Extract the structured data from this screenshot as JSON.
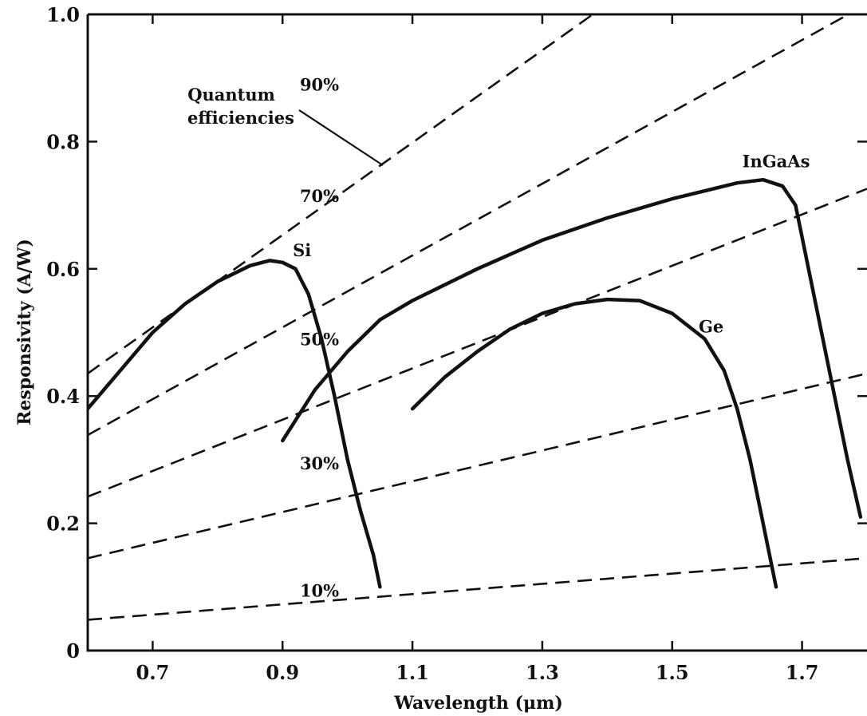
{
  "chart_data": {
    "type": "line",
    "xlabel": "Wavelength (μm)",
    "ylabel": "Responsivity (A/W)",
    "xlim": [
      0.6,
      1.8
    ],
    "ylim": [
      0,
      1.0
    ],
    "x_ticks": [
      {
        "value": 0.7,
        "label": "0.7"
      },
      {
        "value": 0.9,
        "label": "0.9"
      },
      {
        "value": 1.1,
        "label": "1.1"
      },
      {
        "value": 1.3,
        "label": "1.3"
      },
      {
        "value": 1.5,
        "label": "1.5"
      },
      {
        "value": 1.7,
        "label": "1.7"
      }
    ],
    "y_ticks": [
      {
        "value": 0,
        "label": "0"
      },
      {
        "value": 0.2,
        "label": "0.2"
      },
      {
        "value": 0.4,
        "label": "0.4"
      },
      {
        "value": 0.6,
        "label": "0.6"
      },
      {
        "value": 0.8,
        "label": "0.8"
      },
      {
        "value": 1.0,
        "label": "1.0"
      }
    ],
    "grid": false,
    "series": [
      {
        "name": "Si",
        "points": [
          [
            0.6,
            0.38
          ],
          [
            0.65,
            0.44
          ],
          [
            0.7,
            0.5
          ],
          [
            0.75,
            0.545
          ],
          [
            0.8,
            0.58
          ],
          [
            0.85,
            0.605
          ],
          [
            0.88,
            0.613
          ],
          [
            0.9,
            0.61
          ],
          [
            0.92,
            0.6
          ],
          [
            0.94,
            0.56
          ],
          [
            0.96,
            0.49
          ],
          [
            0.98,
            0.4
          ],
          [
            1.0,
            0.3
          ],
          [
            1.02,
            0.22
          ],
          [
            1.04,
            0.15
          ],
          [
            1.05,
            0.1
          ]
        ]
      },
      {
        "name": "InGaAs",
        "points": [
          [
            0.9,
            0.33
          ],
          [
            0.95,
            0.41
          ],
          [
            1.0,
            0.47
          ],
          [
            1.05,
            0.52
          ],
          [
            1.1,
            0.55
          ],
          [
            1.2,
            0.6
          ],
          [
            1.3,
            0.645
          ],
          [
            1.4,
            0.68
          ],
          [
            1.5,
            0.71
          ],
          [
            1.6,
            0.735
          ],
          [
            1.64,
            0.74
          ],
          [
            1.67,
            0.73
          ],
          [
            1.69,
            0.7
          ],
          [
            1.71,
            0.6
          ],
          [
            1.73,
            0.5
          ],
          [
            1.75,
            0.4
          ],
          [
            1.77,
            0.3
          ],
          [
            1.79,
            0.21
          ]
        ]
      },
      {
        "name": "Ge",
        "points": [
          [
            1.1,
            0.38
          ],
          [
            1.15,
            0.43
          ],
          [
            1.2,
            0.47
          ],
          [
            1.25,
            0.505
          ],
          [
            1.3,
            0.53
          ],
          [
            1.35,
            0.545
          ],
          [
            1.4,
            0.552
          ],
          [
            1.45,
            0.55
          ],
          [
            1.5,
            0.53
          ],
          [
            1.55,
            0.49
          ],
          [
            1.58,
            0.44
          ],
          [
            1.6,
            0.38
          ],
          [
            1.62,
            0.3
          ],
          [
            1.64,
            0.2
          ],
          [
            1.66,
            0.1
          ]
        ]
      }
    ],
    "quantum_efficiency_lines": [
      {
        "label": "10%",
        "efficiency": 0.1
      },
      {
        "label": "30%",
        "efficiency": 0.3
      },
      {
        "label": "50%",
        "efficiency": 0.5
      },
      {
        "label": "70%",
        "efficiency": 0.7
      },
      {
        "label": "90%",
        "efficiency": 0.9
      }
    ],
    "annotations": [
      {
        "text_lines": [
          "Quantum",
          "efficiencies"
        ]
      }
    ]
  }
}
